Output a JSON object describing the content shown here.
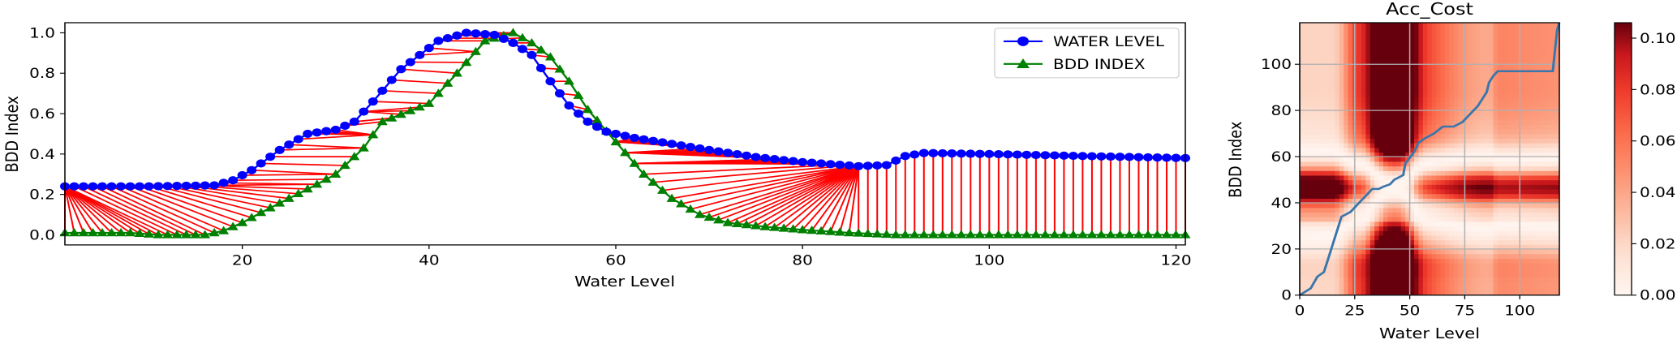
{
  "colors": {
    "water": "#0000ff",
    "bdd": "#008000",
    "match": "#ff0000",
    "path": "#3a76ab",
    "heat_low": "#fff5f0",
    "heat_high": "#67000d"
  },
  "chart_data": [
    {
      "type": "line",
      "title": "",
      "xlabel": "Water Level",
      "ylabel": "BDD Index",
      "xlim": [
        1,
        121
      ],
      "ylim": [
        -0.05,
        1.05
      ],
      "xticks": [
        "20",
        "40",
        "60",
        "80",
        "100",
        "120"
      ],
      "yticks": [
        "0.0",
        "0.2",
        "0.4",
        "0.6",
        "0.8",
        "1.0"
      ],
      "legend_position": "top-right",
      "series": [
        {
          "name": "WATER LEVEL",
          "marker": "circle",
          "knots": [
            [
              1,
              0.24
            ],
            [
              10,
              0.24
            ],
            [
              17,
              0.245
            ],
            [
              19,
              0.27
            ],
            [
              21,
              0.32
            ],
            [
              24,
              0.42
            ],
            [
              27,
              0.5
            ],
            [
              30,
              0.52
            ],
            [
              32,
              0.56
            ],
            [
              34,
              0.66
            ],
            [
              37,
              0.82
            ],
            [
              41,
              0.96
            ],
            [
              44,
              1.0
            ],
            [
              47,
              0.99
            ],
            [
              49,
              0.95
            ],
            [
              51,
              0.89
            ],
            [
              53,
              0.76
            ],
            [
              55,
              0.64
            ],
            [
              57,
              0.56
            ],
            [
              59,
              0.51
            ],
            [
              62,
              0.48
            ],
            [
              66,
              0.45
            ],
            [
              70,
              0.42
            ],
            [
              75,
              0.385
            ],
            [
              80,
              0.36
            ],
            [
              86,
              0.34
            ],
            [
              89,
              0.345
            ],
            [
              91,
              0.39
            ],
            [
              93,
              0.405
            ],
            [
              100,
              0.4
            ],
            [
              110,
              0.39
            ],
            [
              121,
              0.38
            ]
          ]
        },
        {
          "name": "BDD INDEX",
          "marker": "triangle",
          "knots": [
            [
              1,
              0.01
            ],
            [
              8,
              0.01
            ],
            [
              11,
              0.0
            ],
            [
              16,
              0.0
            ],
            [
              18,
              0.02
            ],
            [
              20,
              0.06
            ],
            [
              22,
              0.11
            ],
            [
              25,
              0.18
            ],
            [
              28,
              0.25
            ],
            [
              30,
              0.3
            ],
            [
              33,
              0.43
            ],
            [
              35,
              0.56
            ],
            [
              40,
              0.65
            ],
            [
              43,
              0.8
            ],
            [
              46,
              0.96
            ],
            [
              49,
              1.0
            ],
            [
              51,
              0.95
            ],
            [
              53,
              0.88
            ],
            [
              55,
              0.76
            ],
            [
              57,
              0.62
            ],
            [
              60,
              0.46
            ],
            [
              63,
              0.3
            ],
            [
              66,
              0.18
            ],
            [
              69,
              0.1
            ],
            [
              72,
              0.06
            ],
            [
              76,
              0.04
            ],
            [
              80,
              0.025
            ],
            [
              85,
              0.01
            ],
            [
              90,
              0.0
            ],
            [
              121,
              0.0
            ]
          ]
        }
      ]
    },
    {
      "type": "heatmap",
      "title": "Acc_Cost",
      "xlabel": "Water Level",
      "ylabel": "BDD Index",
      "xlim": [
        0,
        118
      ],
      "ylim": [
        0,
        118
      ],
      "xticks": [
        "0",
        "25",
        "50",
        "75",
        "100"
      ],
      "yticks": [
        "0",
        "20",
        "40",
        "60",
        "80",
        "100"
      ],
      "grid": true,
      "colorbar": {
        "range": [
          0,
          0.106
        ],
        "ticks": [
          "0.00",
          "0.02",
          "0.04",
          "0.06",
          "0.08",
          "0.10"
        ]
      },
      "path": [
        [
          0,
          0
        ],
        [
          5,
          3
        ],
        [
          8,
          8
        ],
        [
          11,
          10
        ],
        [
          13,
          16
        ],
        [
          15,
          22
        ],
        [
          17,
          28
        ],
        [
          19,
          34
        ],
        [
          23,
          36
        ],
        [
          25,
          38
        ],
        [
          28,
          41
        ],
        [
          31,
          44
        ],
        [
          33,
          46
        ],
        [
          36,
          46
        ],
        [
          38,
          47
        ],
        [
          41,
          48
        ],
        [
          43,
          50
        ],
        [
          47,
          52
        ],
        [
          48,
          57
        ],
        [
          52,
          62
        ],
        [
          54,
          66
        ],
        [
          57,
          68
        ],
        [
          61,
          70
        ],
        [
          65,
          73
        ],
        [
          70,
          73
        ],
        [
          74,
          75
        ],
        [
          77,
          78
        ],
        [
          81,
          82
        ],
        [
          83,
          85
        ],
        [
          85,
          88
        ],
        [
          86,
          92
        ],
        [
          88,
          95
        ],
        [
          90,
          97
        ],
        [
          115,
          97
        ],
        [
          117,
          115
        ],
        [
          118,
          118
        ]
      ]
    }
  ]
}
